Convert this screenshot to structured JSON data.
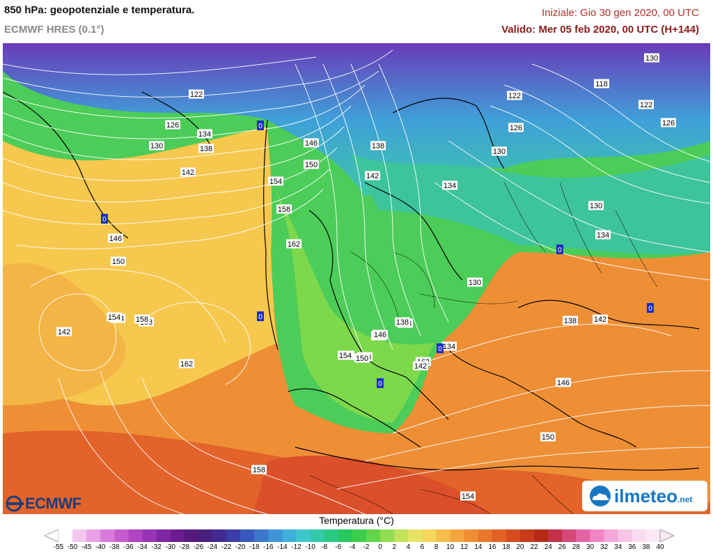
{
  "header": {
    "title": "850 hPa: geopotenziale e temperatura.",
    "model": "ECMWF HRES (0.1°)",
    "init": "Iniziale: Gio 30 gen 2020, 00 UTC",
    "valid": "Valido: Mer 05 feb 2020, 00 UTC (H+144)"
  },
  "colors": {
    "init_text": "#b0302c",
    "valid_text": "#8b1a1a",
    "model_text": "#888888"
  },
  "map": {
    "contour_labels": [
      {
        "text": "122"
      },
      {
        "text": "126"
      },
      {
        "text": "130"
      },
      {
        "text": "134"
      },
      {
        "text": "138"
      },
      {
        "text": "142"
      },
      {
        "text": "146"
      },
      {
        "text": "150"
      },
      {
        "text": "154"
      },
      {
        "text": "158"
      },
      {
        "text": "162"
      },
      {
        "text": "146"
      },
      {
        "text": "150"
      },
      {
        "text": "142"
      },
      {
        "text": "154"
      },
      {
        "text": "158"
      },
      {
        "text": "162"
      },
      {
        "text": "158"
      },
      {
        "text": "146"
      },
      {
        "text": "150"
      },
      {
        "text": "154"
      },
      {
        "text": "158"
      },
      {
        "text": "162"
      },
      {
        "text": "138"
      },
      {
        "text": "142"
      },
      {
        "text": "134"
      },
      {
        "text": "130"
      },
      {
        "text": "126"
      },
      {
        "text": "122"
      },
      {
        "text": "130"
      },
      {
        "text": "118"
      },
      {
        "text": "122"
      },
      {
        "text": "126"
      },
      {
        "text": "130"
      },
      {
        "text": "134"
      },
      {
        "text": "130"
      },
      {
        "text": "138"
      },
      {
        "text": "146"
      },
      {
        "text": "154"
      },
      {
        "text": "150"
      },
      {
        "text": "142"
      },
      {
        "text": "134"
      },
      {
        "text": "138"
      },
      {
        "text": "142"
      },
      {
        "text": "146"
      },
      {
        "text": "150"
      },
      {
        "text": "154"
      },
      {
        "text": "158"
      },
      {
        "text": "154"
      }
    ],
    "low_marks": [
      "0",
      "0",
      "0",
      "0",
      "0",
      "0",
      "0"
    ]
  },
  "legend": {
    "title": "Temperatura (°C)",
    "ticks": [
      "-55",
      "-50",
      "-45",
      "-40",
      "-38",
      "-36",
      "-34",
      "-32",
      "-30",
      "-28",
      "-26",
      "-24",
      "-22",
      "-20",
      "-18",
      "-16",
      "-14",
      "-12",
      "-10",
      "-8",
      "-6",
      "-4",
      "-2",
      "0",
      "2",
      "4",
      "6",
      "8",
      "10",
      "12",
      "14",
      "16",
      "18",
      "20",
      "22",
      "24",
      "26",
      "28",
      "30",
      "32",
      "34",
      "36",
      "38",
      "40"
    ],
    "colors": [
      "#ffffff",
      "#f3c6ef",
      "#e7a0e6",
      "#d97adb",
      "#c65ccf",
      "#b044c3",
      "#9834b4",
      "#7f27a3",
      "#6a1d90",
      "#561a7d",
      "#47207e",
      "#432a93",
      "#3d3da8",
      "#3759bd",
      "#3b78cc",
      "#3f95d7",
      "#3fb0d9",
      "#3ec7cc",
      "#33c9a9",
      "#2ac983",
      "#28c85c",
      "#3bce4a",
      "#62d54b",
      "#93dd51",
      "#c2e35a",
      "#e6e464",
      "#f5d55b",
      "#f6bd4c",
      "#f3a53e",
      "#ef8d33",
      "#ea762b",
      "#e26124",
      "#d64c1e",
      "#c83a1a",
      "#b62a18",
      "#c4304a",
      "#d54877",
      "#e564a4",
      "#ee86c4",
      "#f4a7d8",
      "#f7c5e6",
      "#f9dbef",
      "#fbeaf6"
    ]
  },
  "logos": {
    "ecmwf": "ECMWF",
    "ilmeteo": "ilmeteo",
    "ilmeteo_suffix": ".net"
  }
}
